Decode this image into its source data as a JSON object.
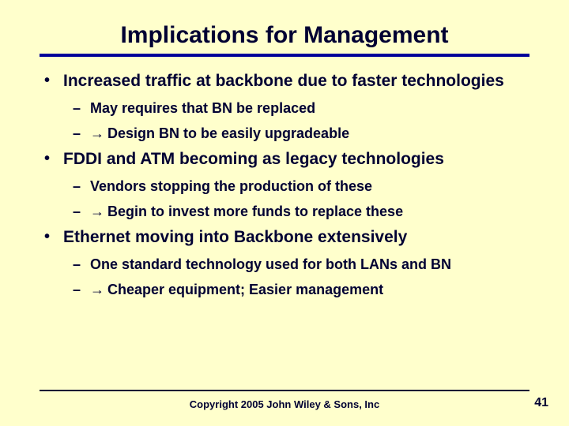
{
  "colors": {
    "background": "#ffffcc",
    "text": "#000033",
    "rule": "#000099"
  },
  "title": "Implications for Management",
  "bullets": [
    {
      "text": "Increased traffic at backbone due to faster technologies",
      "sub": [
        {
          "arrow": false,
          "text": "May requires that BN be replaced"
        },
        {
          "arrow": true,
          "text": "Design BN to be easily upgradeable"
        }
      ]
    },
    {
      "text": "FDDI and ATM becoming as legacy technologies",
      "sub": [
        {
          "arrow": false,
          "text": "Vendors stopping the production of these"
        },
        {
          "arrow": true,
          "text": "Begin to invest more funds to replace these"
        }
      ]
    },
    {
      "text": "Ethernet moving into Backbone extensively",
      "sub": [
        {
          "arrow": false,
          "text": "One standard technology used for both LANs and BN"
        },
        {
          "arrow": true,
          "text": "Cheaper equipment; Easier management"
        }
      ]
    }
  ],
  "footer": {
    "copyright": "Copyright 2005 John Wiley & Sons, Inc",
    "page": "41"
  }
}
